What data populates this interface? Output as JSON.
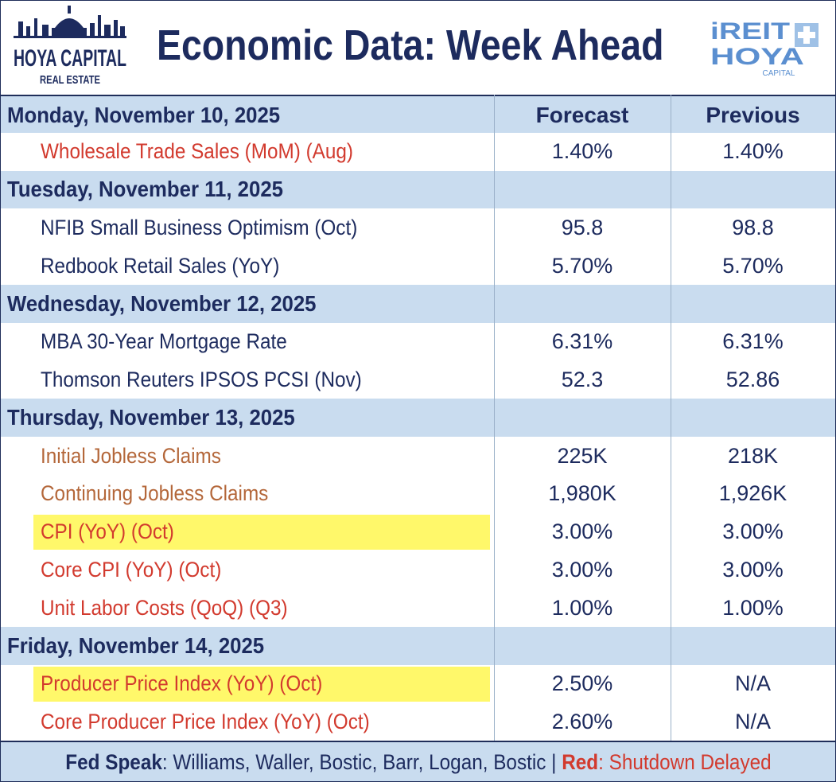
{
  "header": {
    "title": "Economic Data: Week Ahead",
    "logo_left_line1": "HOYA CAPITAL",
    "logo_left_line2": "REAL ESTATE",
    "logo_right_line1": "iREIT",
    "logo_right_line2": "HOYA",
    "logo_right_line3": "CAPITAL"
  },
  "columns": {
    "forecast": "Forecast",
    "previous": "Previous"
  },
  "rows": [
    {
      "type": "day",
      "label": "Monday, November 10, 2025",
      "forecast": "Forecast",
      "previous": "Previous"
    },
    {
      "type": "item",
      "label": "Wholesale Trade Sales (MoM) (Aug)",
      "forecast": "1.40%",
      "previous": "1.40%",
      "color": "red",
      "highlight": false
    },
    {
      "type": "day",
      "label": "Tuesday, November 11, 2025",
      "forecast": "",
      "previous": ""
    },
    {
      "type": "item",
      "label": "NFIB Small Business Optimism (Oct)",
      "forecast": "95.8",
      "previous": "98.8",
      "color": "navy",
      "highlight": false
    },
    {
      "type": "item",
      "label": "Redbook Retail Sales (YoY)",
      "forecast": "5.70%",
      "previous": "5.70%",
      "color": "navy",
      "highlight": false
    },
    {
      "type": "day",
      "label": "Wednesday, November 12, 2025",
      "forecast": "",
      "previous": ""
    },
    {
      "type": "item",
      "label": "MBA 30-Year Mortgage Rate",
      "forecast": "6.31%",
      "previous": "6.31%",
      "color": "navy",
      "highlight": false
    },
    {
      "type": "item",
      "label": "Thomson Reuters IPSOS PCSI (Nov)",
      "forecast": "52.3",
      "previous": "52.86",
      "color": "navy",
      "highlight": false
    },
    {
      "type": "day",
      "label": "Thursday, November 13, 2025",
      "forecast": "",
      "previous": ""
    },
    {
      "type": "item",
      "label": "Initial Jobless Claims",
      "forecast": "225K",
      "previous": "218K",
      "color": "orange",
      "highlight": false
    },
    {
      "type": "item",
      "label": "Continuing Jobless Claims",
      "forecast": "1,980K",
      "previous": "1,926K",
      "color": "orange",
      "highlight": false
    },
    {
      "type": "item",
      "label": "CPI (YoY) (Oct)",
      "forecast": "3.00%",
      "previous": "3.00%",
      "color": "red",
      "highlight": true
    },
    {
      "type": "item",
      "label": "Core CPI (YoY) (Oct)",
      "forecast": "3.00%",
      "previous": "3.00%",
      "color": "red",
      "highlight": false
    },
    {
      "type": "item",
      "label": "Unit Labor Costs (QoQ) (Q3)",
      "forecast": "1.00%",
      "previous": "1.00%",
      "color": "red",
      "highlight": false
    },
    {
      "type": "day",
      "label": "Friday, November 14, 2025",
      "forecast": "",
      "previous": ""
    },
    {
      "type": "item",
      "label": "Producer Price Index (YoY) (Oct)",
      "forecast": "2.50%",
      "previous": "N/A",
      "color": "red",
      "highlight": true
    },
    {
      "type": "item",
      "label": "Core Producer Price Index (YoY) (Oct)",
      "forecast": "2.60%",
      "previous": "N/A",
      "color": "red",
      "highlight": false
    }
  ],
  "footer": {
    "fed_label": "Fed Speak",
    "fed_text": ": Williams, Waller, Bostic, Barr, Logan, Bostic | ",
    "red_label": "Red",
    "red_text": ": Shutdown Delayed"
  },
  "colors": {
    "navy": "#1d2b5e",
    "red": "#d23a2e",
    "orange": "#b4673a",
    "day_band": "#c9dcef",
    "highlight": "#fff86a",
    "logo_blue": "#5b8fd0"
  }
}
